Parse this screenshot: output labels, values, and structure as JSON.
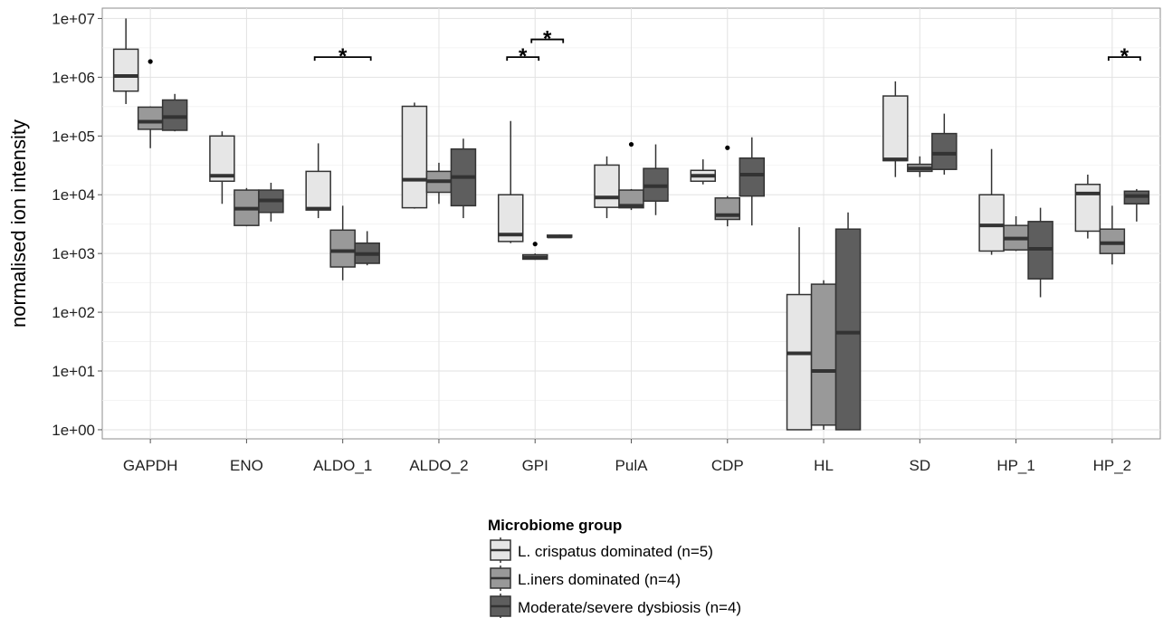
{
  "chart_data": {
    "type": "boxplot",
    "title": "",
    "xlabel": "",
    "ylabel": "normalised ion intensity",
    "y_scale": "log10",
    "ylim": [
      0.7,
      15000000.0
    ],
    "y_ticks": [
      1,
      10,
      100,
      1000,
      10000,
      100000,
      1000000,
      10000000
    ],
    "y_tick_labels": [
      "1e+00",
      "1e+01",
      "1e+02",
      "1e+03",
      "1e+04",
      "1e+05",
      "1e+06",
      "1e+07"
    ],
    "grid": true,
    "legend_position": "bottom",
    "categories": [
      "GAPDH",
      "ENO",
      "ALDO_1",
      "ALDO_2",
      "GPI",
      "PulA",
      "CDP",
      "HL",
      "SD",
      "HP_1",
      "HP_2"
    ],
    "legend": {
      "title": "Microbiome group",
      "entries": [
        "L. crispatus dominated (n=5)",
        "L.iners dominated (n=4)",
        "Moderate/severe dysbiosis (n=4)"
      ]
    },
    "colors": [
      "#e6e6e6",
      "#999999",
      "#5e5e5e"
    ],
    "series": [
      {
        "name": "L. crispatus dominated (n=5)",
        "boxes": [
          {
            "min": 350000,
            "q1": 580000,
            "median": 1050000,
            "q3": 3000000,
            "max": 10000000,
            "outliers": []
          },
          {
            "min": 7000,
            "q1": 17000,
            "median": 21000,
            "q3": 100000,
            "max": 120000,
            "outliers": []
          },
          {
            "min": 4000,
            "q1": 5500,
            "median": 5800,
            "q3": 25000,
            "max": 75000,
            "outliers": []
          },
          {
            "min": 5800,
            "q1": 6000,
            "median": 18000,
            "q3": 320000,
            "max": 370000,
            "outliers": []
          },
          {
            "min": 1500,
            "q1": 1600,
            "median": 2100,
            "q3": 10000,
            "max": 180000,
            "outliers": []
          },
          {
            "min": 4000,
            "q1": 6100,
            "median": 9000,
            "q3": 32000,
            "max": 45000,
            "outliers": []
          },
          {
            "min": 15000,
            "q1": 17000,
            "median": 21000,
            "q3": 26000,
            "max": 40000,
            "outliers": []
          },
          {
            "min": 1,
            "q1": 1,
            "median": 20,
            "q3": 200,
            "max": 2800,
            "outliers": []
          },
          {
            "min": 20000,
            "q1": 38000,
            "median": 40000,
            "q3": 480000,
            "max": 850000,
            "outliers": []
          },
          {
            "min": 950,
            "q1": 1100,
            "median": 3000,
            "q3": 10000,
            "max": 60000,
            "outliers": []
          },
          {
            "min": 1800,
            "q1": 2400,
            "median": 10500,
            "q3": 15000,
            "max": 22000,
            "outliers": []
          }
        ]
      },
      {
        "name": "L.iners dominated (n=4)",
        "boxes": [
          {
            "min": 62000,
            "q1": 130000,
            "median": 175000,
            "q3": 310000,
            "max": 320000,
            "outliers": [
              1850000
            ]
          },
          {
            "min": 2900,
            "q1": 3000,
            "median": 5800,
            "q3": 12000,
            "max": 13000,
            "outliers": []
          },
          {
            "min": 350,
            "q1": 590,
            "median": 1100,
            "q3": 2500,
            "max": 6500,
            "outliers": []
          },
          {
            "min": 7000,
            "q1": 11000,
            "median": 17000,
            "q3": 25000,
            "max": 35000,
            "outliers": []
          },
          {
            "min": 780,
            "q1": 800,
            "median": 850,
            "q3": 950,
            "max": 1000,
            "outliers": [
              1450
            ]
          },
          {
            "min": 5500,
            "q1": 6000,
            "median": 6500,
            "q3": 12000,
            "max": 12500,
            "outliers": [
              72000
            ]
          },
          {
            "min": 2900,
            "q1": 3800,
            "median": 4500,
            "q3": 8800,
            "max": 9500,
            "outliers": [
              63000
            ]
          },
          {
            "min": 1,
            "q1": 1.2,
            "median": 10,
            "q3": 300,
            "max": 350,
            "outliers": []
          },
          {
            "min": 20000,
            "q1": 25000,
            "median": 28000,
            "q3": 33000,
            "max": 45000,
            "outliers": []
          },
          {
            "min": 1100,
            "q1": 1150,
            "median": 1800,
            "q3": 3000,
            "max": 4300,
            "outliers": []
          },
          {
            "min": 650,
            "q1": 1000,
            "median": 1500,
            "q3": 2600,
            "max": 6500,
            "outliers": []
          }
        ]
      },
      {
        "name": "Moderate/severe dysbiosis (n=4)",
        "boxes": [
          {
            "min": 120000,
            "q1": 125000,
            "median": 210000,
            "q3": 410000,
            "max": 520000,
            "outliers": []
          },
          {
            "min": 3500,
            "q1": 5000,
            "median": 8000,
            "q3": 12000,
            "max": 16000,
            "outliers": []
          },
          {
            "min": 630,
            "q1": 680,
            "median": 980,
            "q3": 1500,
            "max": 2400,
            "outliers": []
          },
          {
            "min": 4000,
            "q1": 6500,
            "median": 20000,
            "q3": 60000,
            "max": 90000,
            "outliers": []
          },
          {
            "min": 1850,
            "q1": 1900,
            "median": 1950,
            "q3": 2050,
            "max": 2100,
            "outliers": []
          },
          {
            "min": 4500,
            "q1": 7800,
            "median": 14000,
            "q3": 28000,
            "max": 72000,
            "outliers": []
          },
          {
            "min": 3000,
            "q1": 9500,
            "median": 22000,
            "q3": 42000,
            "max": 95000,
            "outliers": []
          },
          {
            "min": 1,
            "q1": 1,
            "median": 45,
            "q3": 2600,
            "max": 5000,
            "outliers": []
          },
          {
            "min": 22000,
            "q1": 27000,
            "median": 50000,
            "q3": 110000,
            "max": 240000,
            "outliers": []
          },
          {
            "min": 180,
            "q1": 370,
            "median": 1200,
            "q3": 3500,
            "max": 6000,
            "outliers": []
          },
          {
            "min": 3500,
            "q1": 7000,
            "median": 9500,
            "q3": 11500,
            "max": 12500,
            "outliers": []
          }
        ]
      }
    ],
    "annotations": [
      {
        "text": "*",
        "category": "ALDO_1",
        "from_group": 0,
        "to_group": 2,
        "y": 2200000
      },
      {
        "text": "*",
        "category": "GPI",
        "from_group": 0,
        "to_group": 1,
        "y": 2200000
      },
      {
        "text": "*",
        "category": "GPI",
        "from_group": 1,
        "to_group": 2,
        "y": 4400000
      },
      {
        "text": "*",
        "category": "HP_2",
        "from_group": 1,
        "to_group": 2,
        "y": 2200000
      }
    ]
  }
}
